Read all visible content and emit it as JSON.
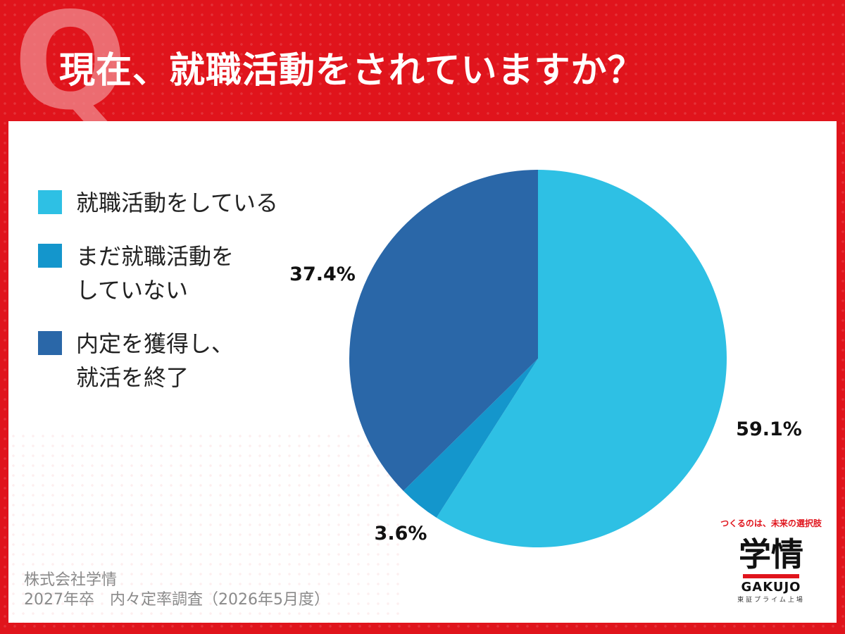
{
  "header": {
    "q_letter": "Q",
    "title": "現在、就職活動をされていますか？"
  },
  "chart_data": {
    "type": "pie",
    "title": "",
    "categories": [
      "就職活動をしている",
      "まだ就職活動を\nしていない",
      "内定を獲得し、\n就活を終了"
    ],
    "values": [
      59.1,
      3.6,
      37.4
    ],
    "labels": [
      "59.1%",
      "3.6%",
      "37.4%"
    ],
    "colors": [
      "#2ec0e4",
      "#1496cc",
      "#2a67a8"
    ],
    "legend_placement": "left",
    "start_angle": "12 o'clock, clockwise"
  },
  "footer": {
    "company": "株式会社学情",
    "survey": "2027年卒　内々定率調査（2026年5月度）"
  },
  "logo": {
    "tagline": "つくるのは、未来の選択肢",
    "mark": "学情",
    "en": "GAKUJO",
    "sub": "東証プライム上場"
  }
}
